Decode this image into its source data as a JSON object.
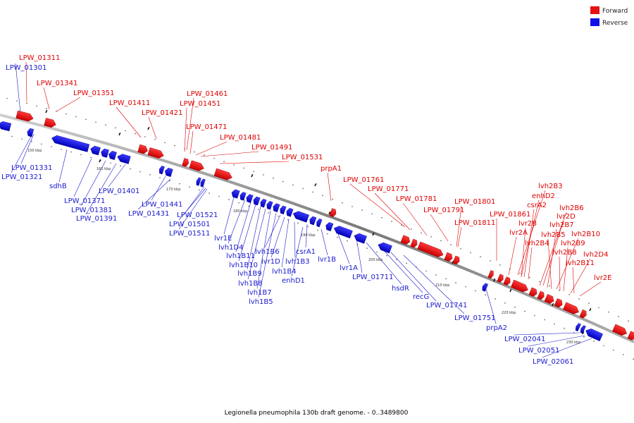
{
  "caption": "Legionella pneumophila 130b draft genome. - 0..3489800",
  "legend": [
    {
      "label": "Forward",
      "color": "#e81010"
    },
    {
      "label": "Reverse",
      "color": "#1010e8"
    }
  ],
  "colors": {
    "forward": "#e81010",
    "reverse": "#1010e8",
    "backbone": "#8a8a8a"
  },
  "scale_ticks": [
    "150 kbp",
    "160 kbp",
    "170 kbp",
    "180 kbp",
    "190 kbp",
    "200 kbp",
    "210 kbp",
    "220 kbp",
    "230 kbp"
  ],
  "forward_labels": [
    "LPW_01311",
    "LPW_01341",
    "LPW_01351",
    "LPW_01411",
    "LPW_01421",
    "LPW_01461",
    "LPW_01451",
    "LPW_01471",
    "LPW_01481",
    "LPW_01491",
    "LPW_01531",
    "prpA1",
    "LPW_01761",
    "LPW_01771",
    "LPW_01781",
    "LPW_01791",
    "LPW_01801",
    "LPW_01811",
    "LPW_01861",
    "lvh2B3",
    "enhD2",
    "csrA2",
    "lvr2B",
    "lvr2A",
    "lvh2B4",
    "lvh2B6",
    "lvr2D",
    "lvh2B7",
    "lvh2B5",
    "lvh2B10",
    "lvh2B8",
    "lvh2B9",
    "lvh2D4",
    "lvh2B11",
    "lvr2E"
  ],
  "reverse_labels": [
    "LPW_01301",
    "LPW_01331",
    "LPW_01321",
    "sdhB",
    "LPW_01371",
    "LPW_01381",
    "LPW_01391",
    "LPW_01401",
    "LPW_01441",
    "LPW_01431",
    "LPW_01521",
    "LPW_01501",
    "LPW_01511",
    "lvr1E",
    "lvh1D4",
    "lvh1B11",
    "lvh1B10",
    "lvh1B9",
    "lvh1B8",
    "lvh1B7",
    "lvh1B5",
    "lvh1B6",
    "lvr1D",
    "lvh1B4",
    "lvh1B3",
    "csrA1",
    "enhD1",
    "lvr1B",
    "lvr1A",
    "LPW_01711",
    "hsdR",
    "recG",
    "LPW_01741",
    "LPW_01751",
    "prpA2",
    "LPW_02041",
    "LPW_02051",
    "LPW_02061"
  ]
}
